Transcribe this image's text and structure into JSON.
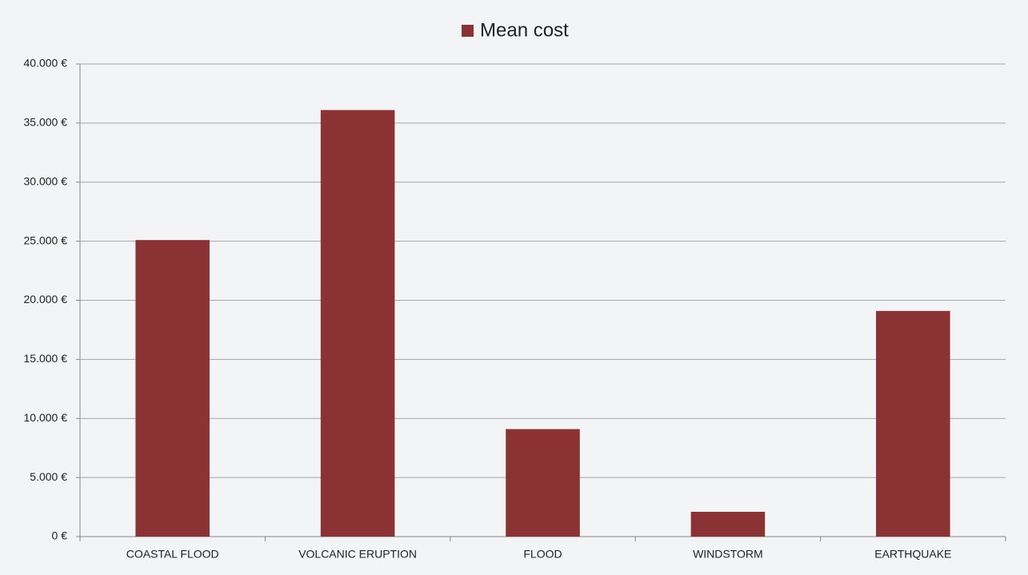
{
  "chart_data": {
    "type": "bar",
    "categories": [
      "COASTAL FLOOD",
      "VOLCANIC ERUPTION",
      "FLOOD",
      "WINDSTORM",
      "EARTHQUAKE"
    ],
    "series": [
      {
        "name": "Mean cost",
        "color": "#8b3234",
        "values": [
          25100,
          36100,
          9100,
          2100,
          19100
        ]
      }
    ],
    "ylim": [
      0,
      40000
    ],
    "yticks": [
      {
        "value": 0,
        "label": "0 €"
      },
      {
        "value": 5000,
        "label": "5.000 €"
      },
      {
        "value": 10000,
        "label": "10.000 €"
      },
      {
        "value": 15000,
        "label": "15.000 €"
      },
      {
        "value": 20000,
        "label": "20.000 €"
      },
      {
        "value": 25000,
        "label": "25.000 €"
      },
      {
        "value": 30000,
        "label": "30.000 €"
      },
      {
        "value": 35000,
        "label": "35.000 €"
      },
      {
        "value": 40000,
        "label": "40.000 €"
      }
    ],
    "grid": true,
    "legend": "top"
  }
}
